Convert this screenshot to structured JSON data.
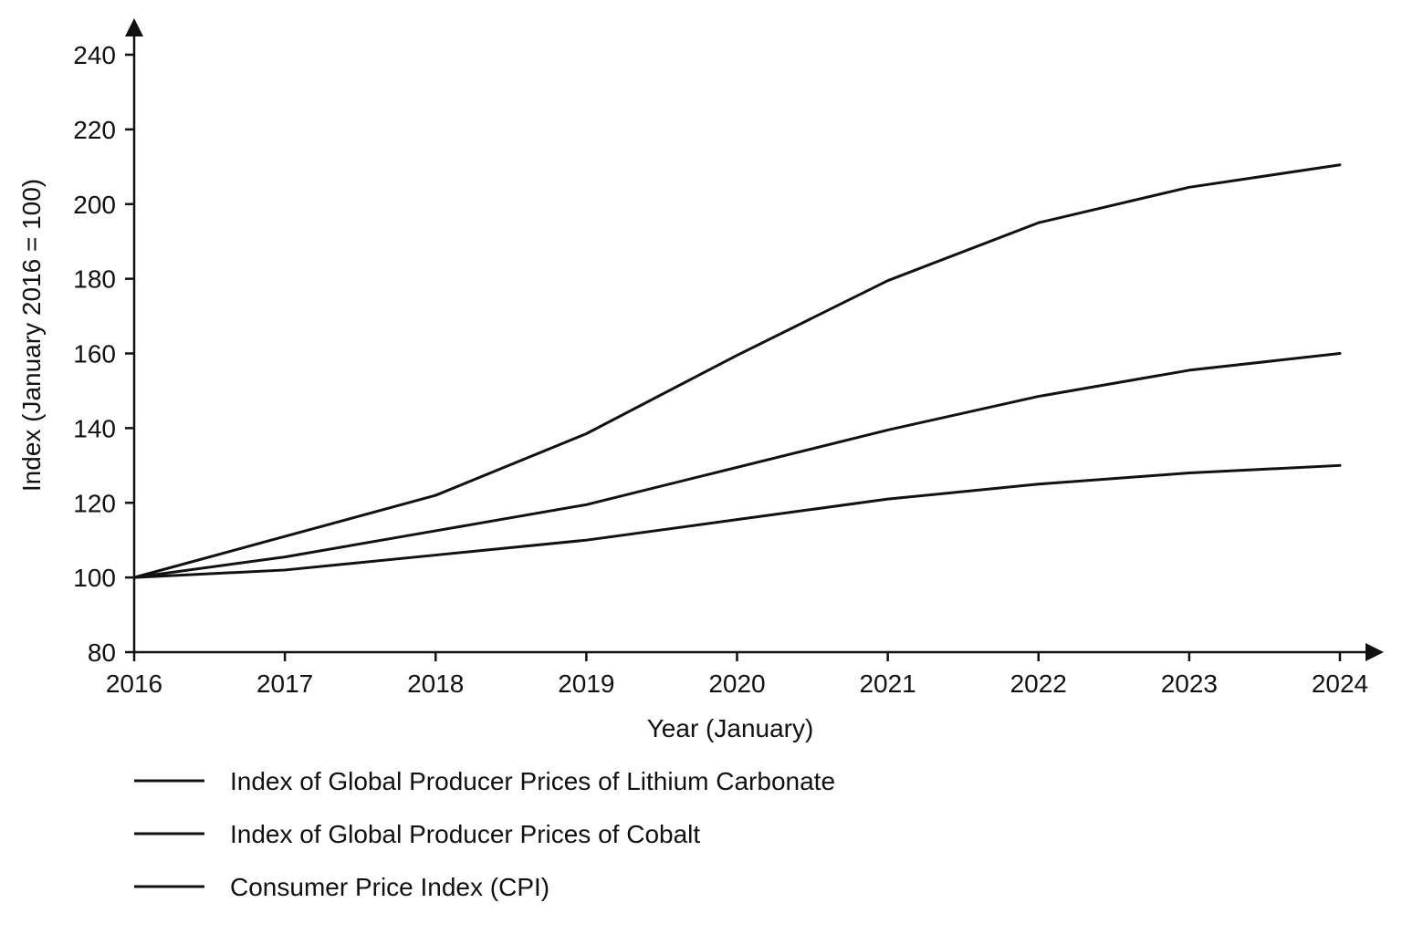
{
  "chart_data": {
    "type": "line",
    "title": "",
    "xlabel": "Year (January)",
    "ylabel": "Index (January 2016 = 100)",
    "x": [
      "2016",
      "2017",
      "2018",
      "2019",
      "2020",
      "2021",
      "2022",
      "2023",
      "2024"
    ],
    "ylim": [
      80,
      240
    ],
    "yticks": [
      80,
      100,
      120,
      140,
      160,
      180,
      200,
      220,
      240
    ],
    "grid": false,
    "legend_position": "bottom",
    "series": [
      {
        "name": "Index of Global Producer Prices of Lithium Carbonate",
        "values": [
          100,
          111,
          122,
          138.5,
          159.5,
          179.5,
          195,
          204.5,
          210.5
        ]
      },
      {
        "name": "Index of Global Producer Prices of Cobalt",
        "values": [
          100,
          105.5,
          112.5,
          119.5,
          129.5,
          139.5,
          148.5,
          155.5,
          160
        ]
      },
      {
        "name": "Consumer Price Index (CPI)",
        "values": [
          100,
          102,
          106,
          110,
          115.5,
          121,
          125,
          128,
          130
        ]
      }
    ],
    "line_color": "#111111"
  }
}
